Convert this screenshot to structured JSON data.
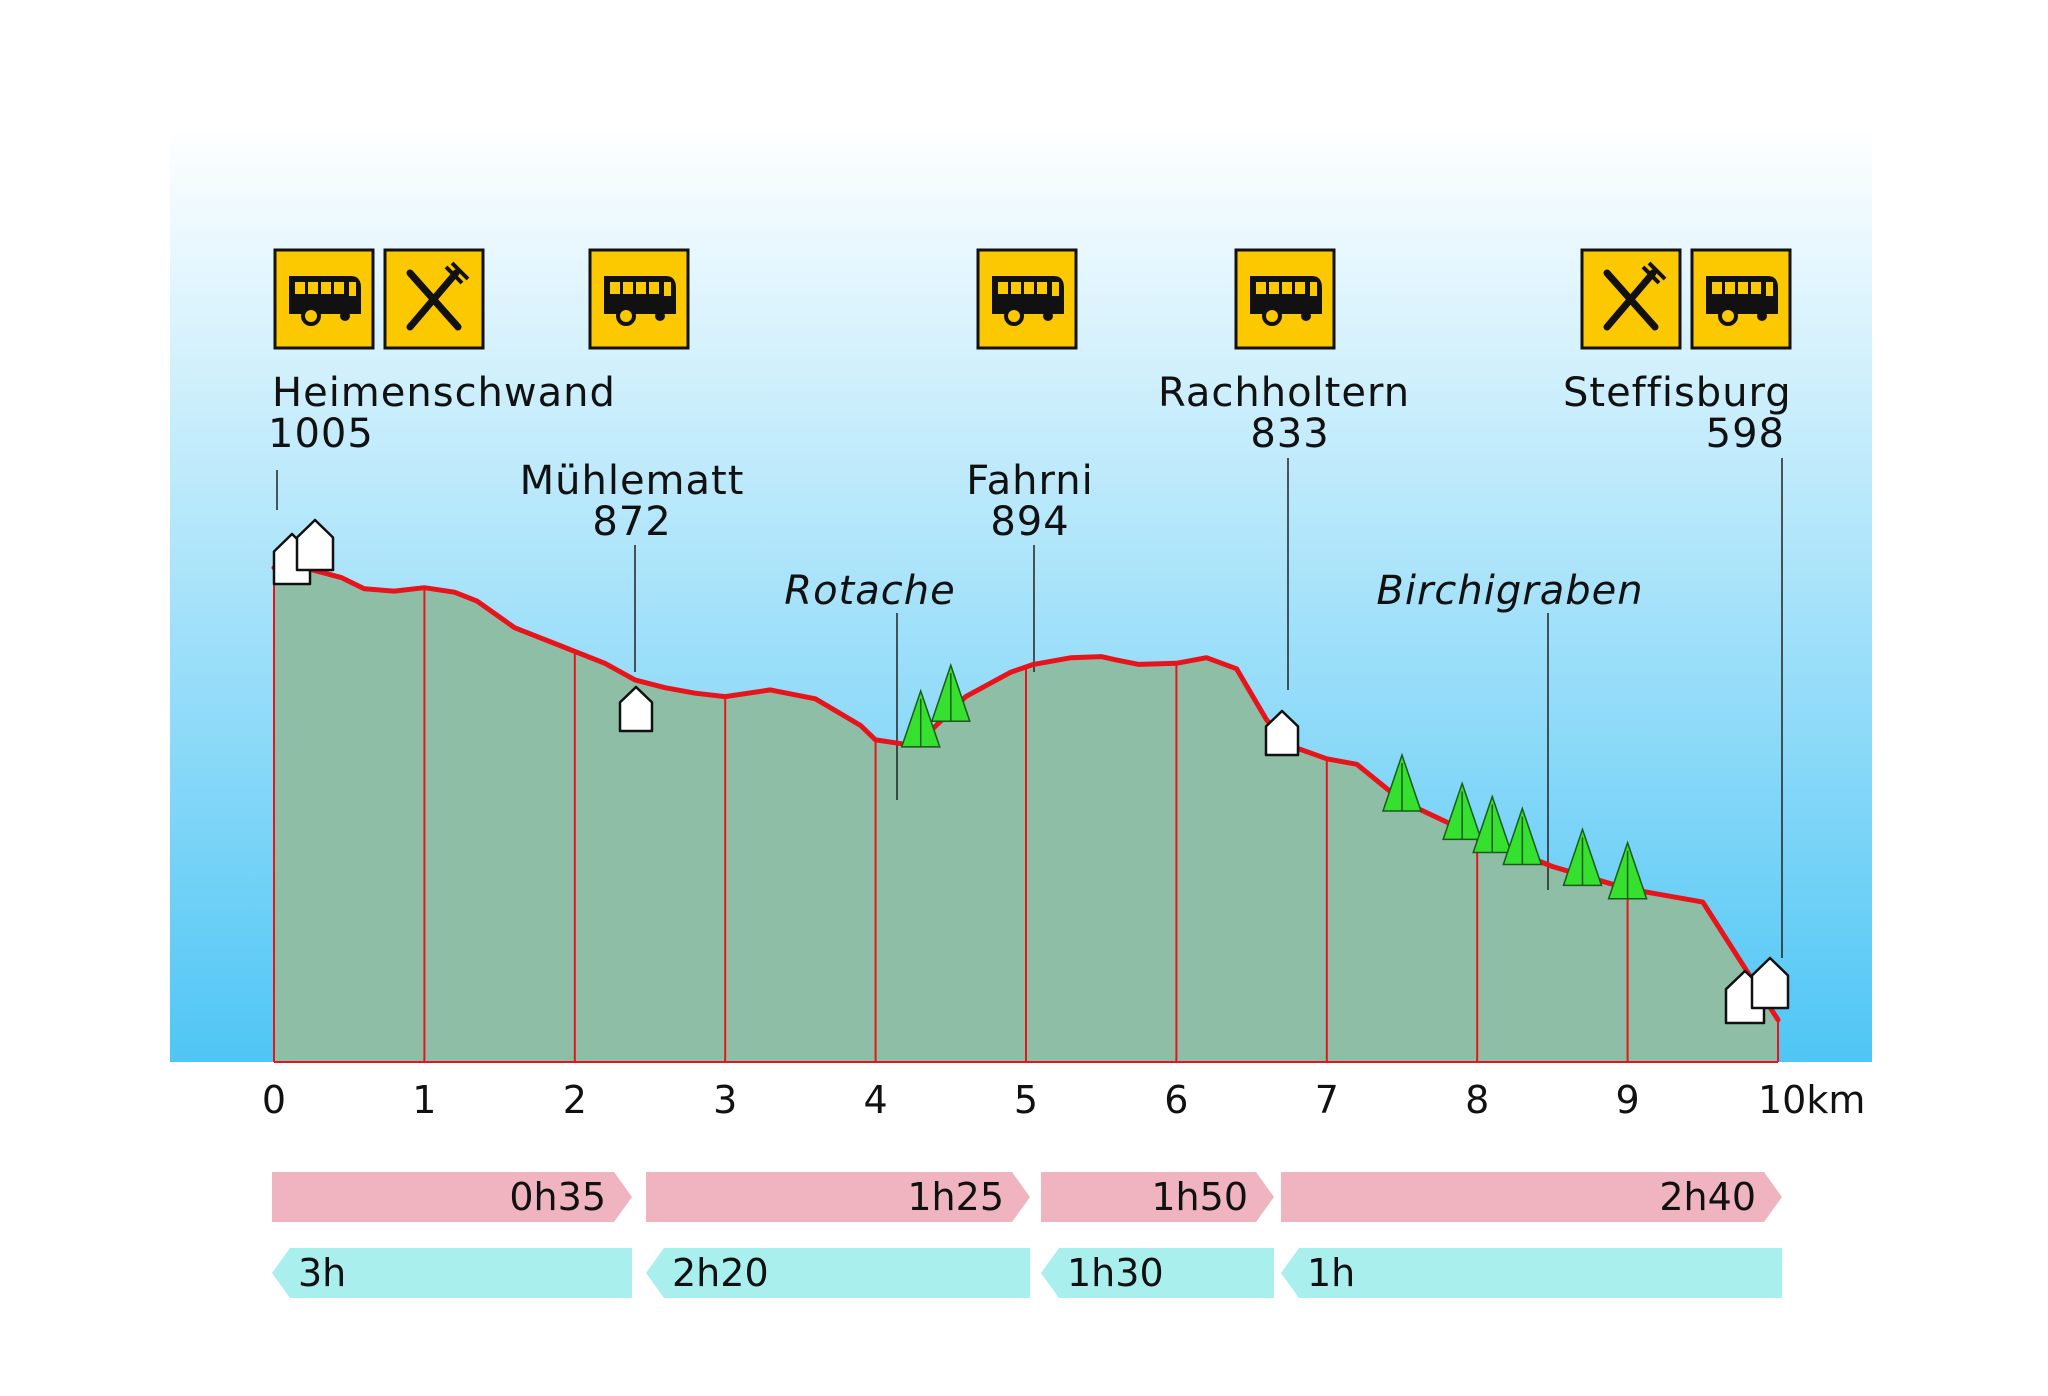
{
  "chart_data": {
    "type": "area",
    "title": "",
    "xlabel": "",
    "ylabel": "",
    "x_unit": "km",
    "xlim": [
      0,
      10
    ],
    "x_ticks": [
      {
        "value": 0,
        "label": "0"
      },
      {
        "value": 1,
        "label": "1"
      },
      {
        "value": 2,
        "label": "2"
      },
      {
        "value": 3,
        "label": "3"
      },
      {
        "value": 4,
        "label": "4"
      },
      {
        "value": 5,
        "label": "5"
      },
      {
        "value": 6,
        "label": "6"
      },
      {
        "value": 7,
        "label": "7"
      },
      {
        "value": 8,
        "label": "8"
      },
      {
        "value": 9,
        "label": "9"
      },
      {
        "value": 10,
        "label": "10km"
      }
    ],
    "ylim": [
      560,
      1120
    ],
    "profile": {
      "x": [
        0,
        0.2,
        0.45,
        0.6,
        0.8,
        1.0,
        1.2,
        1.35,
        1.6,
        1.9,
        2.2,
        2.4,
        2.6,
        2.8,
        3.0,
        3.3,
        3.6,
        3.9,
        4.0,
        4.2,
        4.35,
        4.6,
        4.9,
        5.05,
        5.3,
        5.5,
        5.6,
        5.75,
        6.0,
        6.2,
        6.4,
        6.6,
        6.75,
        7.0,
        7.2,
        7.5,
        8.0,
        8.5,
        9.0,
        9.5,
        10.0
      ],
      "y": [
        1005,
        1005,
        996,
        986,
        984,
        987,
        983,
        975,
        951,
        935,
        919,
        904,
        897,
        892,
        889,
        895,
        887,
        863,
        850,
        846,
        856,
        889,
        911,
        918,
        924,
        925,
        922,
        918,
        919,
        924,
        914,
        868,
        845,
        833,
        828,
        795,
        763,
        736,
        716,
        704,
        598
      ]
    },
    "places": [
      {
        "name": "Heimenschwand",
        "elevation": 1005,
        "km": 0.0,
        "services": [
          "bus",
          "restaurant"
        ]
      },
      {
        "name": "Mühlematt",
        "elevation": 872,
        "km": 2.4,
        "services": [
          "bus"
        ]
      },
      {
        "name": "Fahrni",
        "elevation": 894,
        "km": 5.0,
        "services": [
          "bus"
        ]
      },
      {
        "name": "Rachholtern",
        "elevation": 833,
        "km": 6.7,
        "services": [
          "bus"
        ]
      },
      {
        "name": "Steffisburg",
        "elevation": 598,
        "km": 10.0,
        "services": [
          "restaurant",
          "bus"
        ]
      }
    ],
    "features": [
      {
        "name": "Rotache",
        "km": 4.1
      },
      {
        "name": "Birchigraben",
        "km": 8.5
      }
    ],
    "forward_times": [
      {
        "label": "0h35",
        "from_km": 0.0,
        "to_km": 2.4
      },
      {
        "label": "1h25",
        "from_km": 2.4,
        "to_km": 5.0
      },
      {
        "label": "1h50",
        "from_km": 5.0,
        "to_km": 6.7
      },
      {
        "label": "2h40",
        "from_km": 6.7,
        "to_km": 10.0
      }
    ],
    "return_times": [
      {
        "label": "3h",
        "from_km": 0.0,
        "to_km": 2.4
      },
      {
        "label": "2h20",
        "from_km": 2.4,
        "to_km": 5.0
      },
      {
        "label": "1h30",
        "from_km": 5.0,
        "to_km": 6.7
      },
      {
        "label": "1h",
        "from_km": 6.7,
        "to_km": 10.0
      }
    ],
    "tree_positions_km": [
      4.3,
      4.5,
      7.5,
      7.9,
      8.1,
      8.3,
      8.7,
      9.0
    ],
    "colors": {
      "sky_top": "#ffffff",
      "sky_bottom": "#4fc6f5",
      "terrain_fill": "#8fbea7",
      "profile_line": "#e8141c",
      "icon_bg": "#fcc800",
      "forward_arrow": "#f0b4c1",
      "return_arrow": "#a8efee",
      "tree": "#35e02f"
    },
    "icons": [
      "bus-icon",
      "restaurant-icon",
      "house-icon",
      "tree-icon"
    ]
  }
}
